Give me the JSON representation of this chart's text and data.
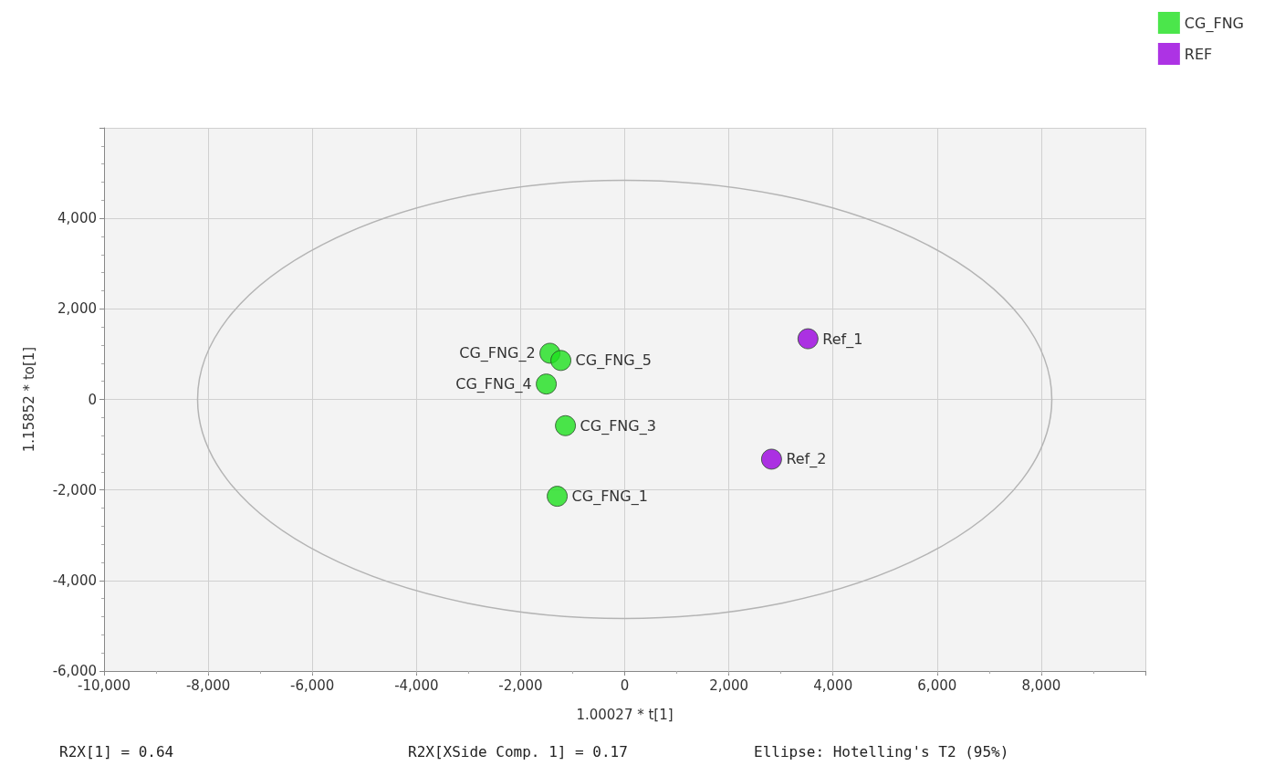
{
  "chart_data": {
    "type": "scatter",
    "xlabel": "1.00027 * t[1]",
    "ylabel": "1.15852 * to[1]",
    "xlim": [
      -10000,
      10000
    ],
    "ylim": [
      -6000,
      6000
    ],
    "xticks": [
      {
        "value": -10000,
        "label": "-10,000"
      },
      {
        "value": -8000,
        "label": "-8,000"
      },
      {
        "value": -6000,
        "label": "-6,000"
      },
      {
        "value": -4000,
        "label": "-4,000"
      },
      {
        "value": -2000,
        "label": "-2,000"
      },
      0,
      {
        "value": 2000,
        "label": "2,000"
      },
      {
        "value": 4000,
        "label": "4,000"
      },
      {
        "value": 6000,
        "label": "6,000"
      },
      {
        "value": 8000,
        "label": "8,000"
      },
      {
        "value": 10000,
        "label": null
      }
    ],
    "yticks": [
      {
        "value": -6000,
        "label": "-6,000"
      },
      {
        "value": -4000,
        "label": "-4,000"
      },
      {
        "value": -2000,
        "label": "-2,000"
      },
      0,
      {
        "value": 2000,
        "label": "2,000"
      },
      {
        "value": 4000,
        "label": "4,000"
      },
      {
        "value": 6000,
        "label": null
      }
    ],
    "grid": true,
    "legend": "top right",
    "marker": "circle",
    "series": [
      {
        "name": "CG_FNG",
        "color": "#1ee01e",
        "x": [
          -1296,
          -1436,
          -1138,
          -1506,
          -1226
        ],
        "values": [
          -2140,
          1020,
          -580,
          340,
          860
        ]
      },
      {
        "name": "REF",
        "color": "#9900dd",
        "x": [
          3520,
          2820
        ],
        "values": [
          1340,
          -1320
        ]
      }
    ],
    "annotations": [
      {
        "text": "CG_FNG_1",
        "x": -1296,
        "y": -2140
      },
      {
        "text": "CG_FNG_2",
        "x": -1436,
        "y": 1020
      },
      {
        "text": "CG_FNG_3",
        "x": -1138,
        "y": -580
      },
      {
        "text": "CG_FNG_4",
        "x": -1506,
        "y": 340
      },
      {
        "text": "CG_FNG_5",
        "x": -1226,
        "y": 860
      },
      {
        "text": "Ref_1",
        "x": 3520,
        "y": 1340
      },
      {
        "text": "Ref_2",
        "x": 2820,
        "y": -1320
      },
      "R2X[1] = 0.64",
      "R2X[XSide Comp. 1] = 0.17",
      "Ellipse: Hotelling's T2 (95%)"
    ]
  }
}
